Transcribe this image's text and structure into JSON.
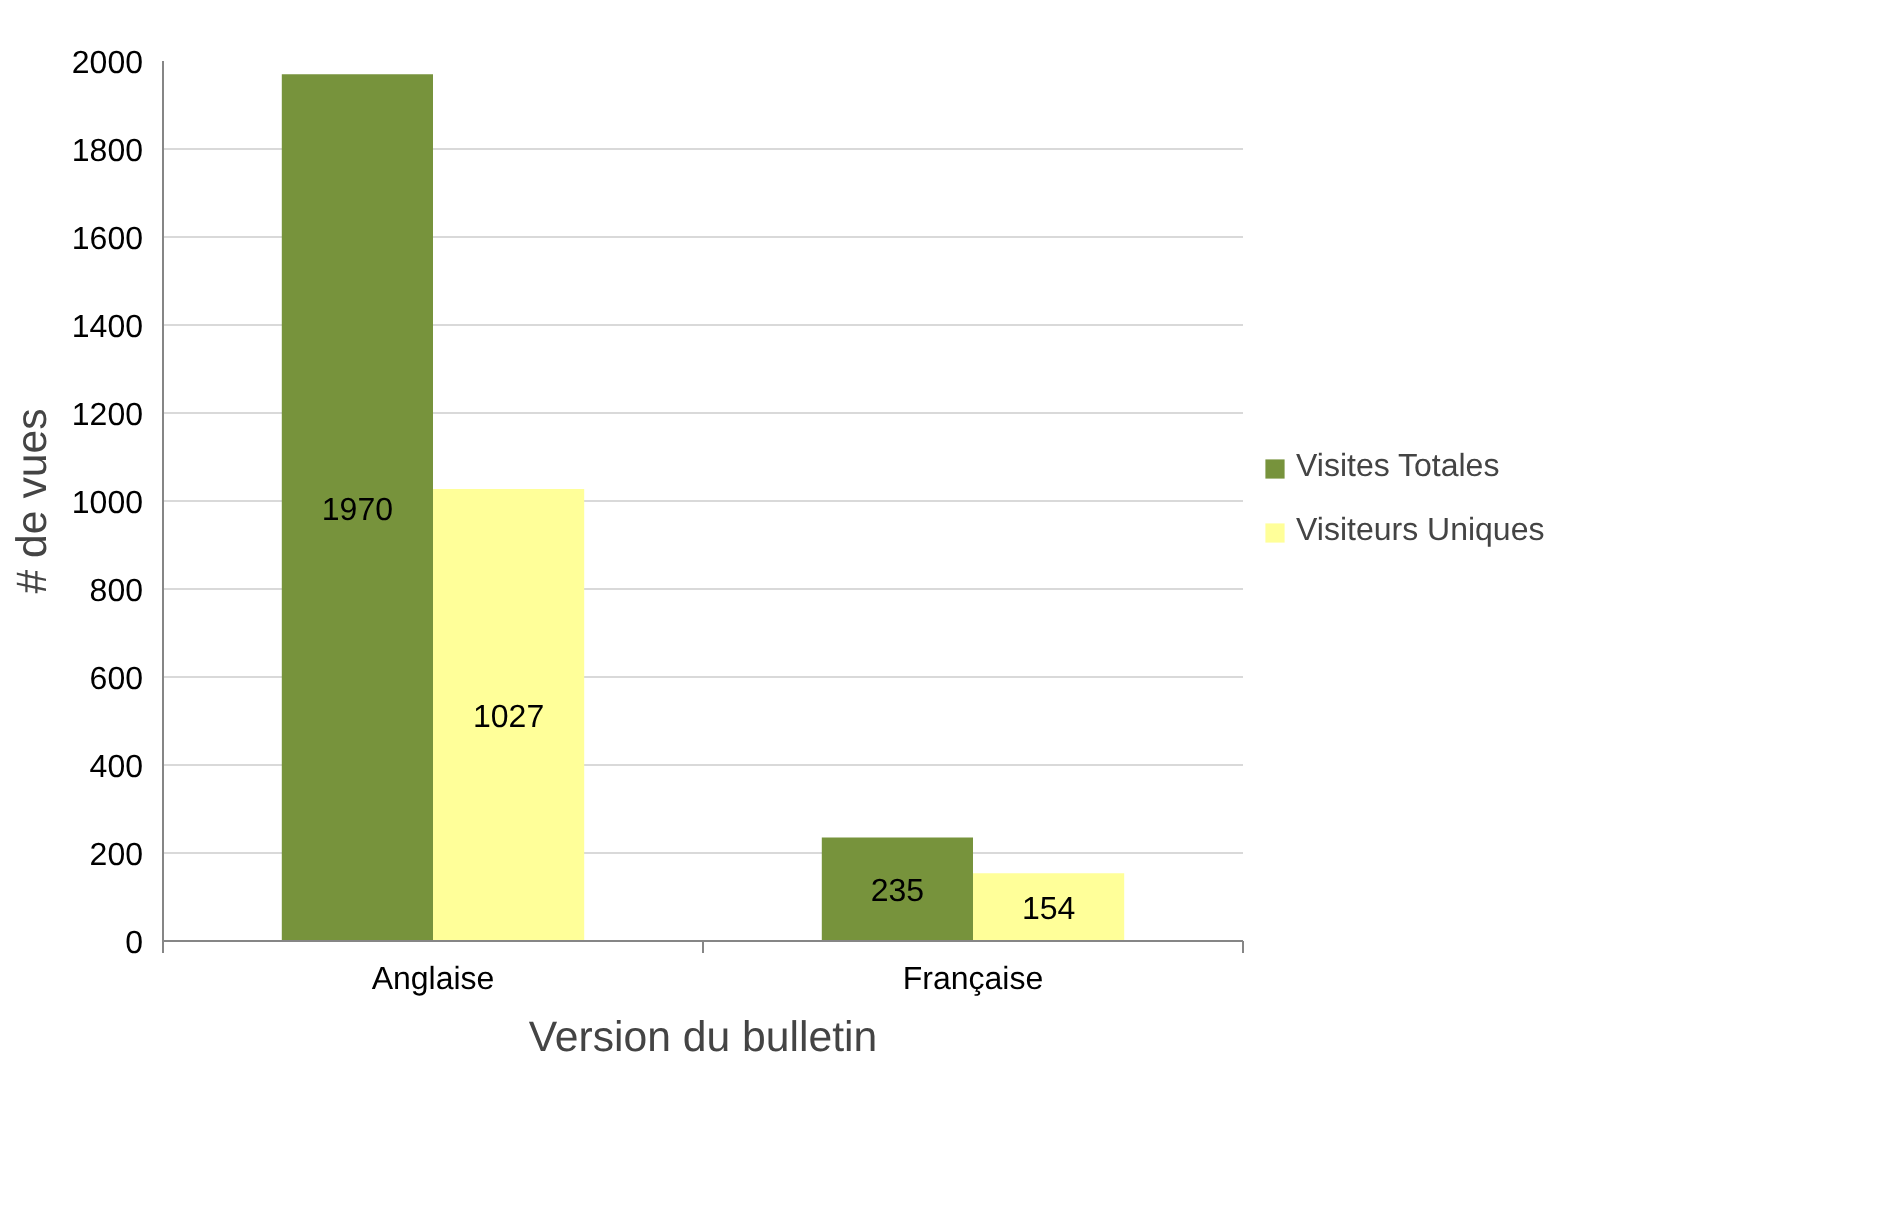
{
  "chart_data": {
    "type": "bar",
    "xlabel": "Version du bulletin",
    "ylabel": "# de vues",
    "categories": [
      "Anglaise",
      "Française"
    ],
    "series": [
      {
        "name": "Visites Totales",
        "color": "#77933c",
        "values": [
          1970,
          235
        ]
      },
      {
        "name": "Visiteurs Uniques",
        "color": "#ffff99",
        "values": [
          1027,
          154
        ]
      }
    ],
    "ylim": [
      0,
      2000
    ],
    "yticks": [
      0,
      200,
      400,
      600,
      800,
      1000,
      1200,
      1400,
      1600,
      1800,
      2000
    ],
    "grid": "y",
    "legend": "right",
    "data_labels": true
  }
}
